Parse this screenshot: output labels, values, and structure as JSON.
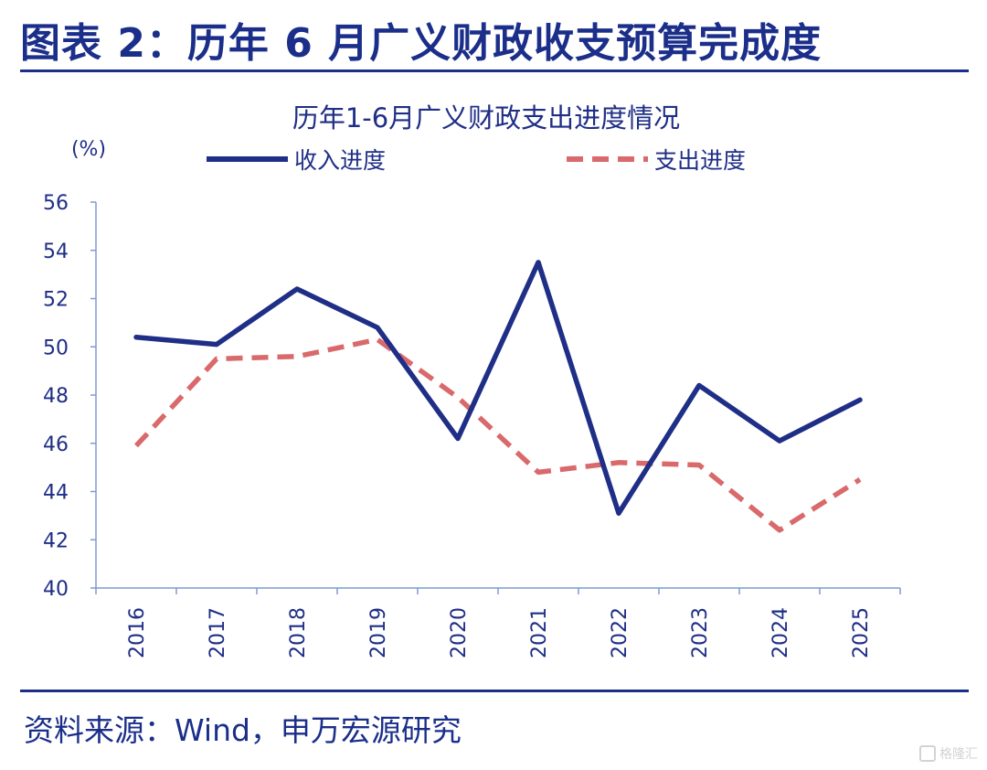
{
  "header": {
    "title": "图表 2：历年 6 月广义财政收支预算完成度"
  },
  "footer": {
    "source": "资料来源：Wind，申万宏源研究",
    "watermark": "格隆汇"
  },
  "colors": {
    "brand": "#1b2f8a",
    "income_line": "#1f2e86",
    "expense_line": "#d9696b",
    "axis": "#7f9bd0"
  },
  "chart_data": {
    "type": "line",
    "title": "历年1-6月广义财政支出进度情况",
    "ylabel": "(%)",
    "xlabel": "",
    "ylim": [
      40,
      56
    ],
    "yticks": [
      40,
      42,
      44,
      46,
      48,
      50,
      52,
      54,
      56
    ],
    "categories": [
      "2016",
      "2017",
      "2018",
      "2019",
      "2020",
      "2021",
      "2022",
      "2023",
      "2024",
      "2025"
    ],
    "grid": false,
    "legend_position": "top",
    "series": [
      {
        "name": "收入进度",
        "style": "solid",
        "values": [
          50.4,
          50.1,
          52.4,
          50.8,
          46.2,
          53.5,
          43.1,
          48.4,
          46.1,
          47.8
        ]
      },
      {
        "name": "支出进度",
        "style": "dashed",
        "values": [
          45.9,
          49.5,
          49.6,
          50.3,
          47.9,
          44.8,
          45.2,
          45.1,
          42.4,
          44.5
        ]
      }
    ]
  }
}
